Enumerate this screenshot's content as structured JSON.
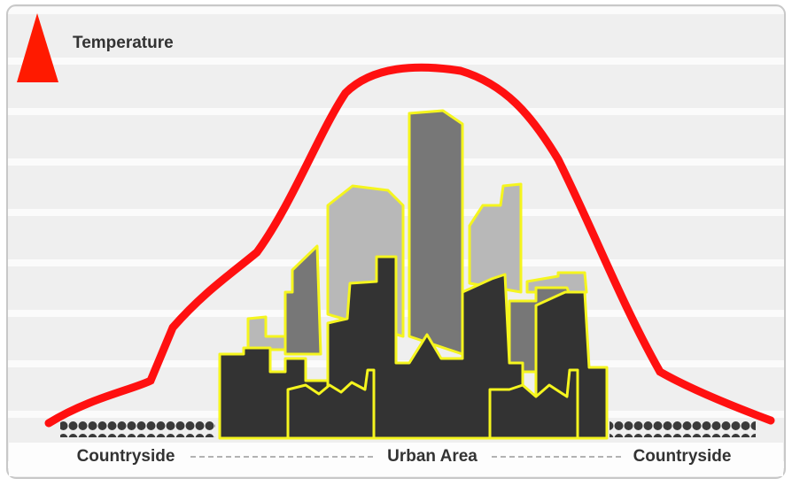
{
  "axis_label": "Temperature",
  "zones": [
    "Countryside",
    "Urban Area",
    "Countryside"
  ]
}
